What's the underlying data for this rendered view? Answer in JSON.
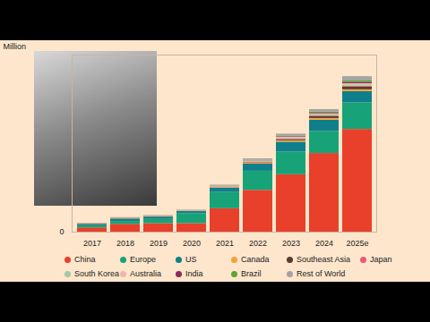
{
  "chart_data": {
    "type": "bar",
    "stacked": true,
    "y_label": "Million",
    "categories": [
      "2017",
      "2018",
      "2019",
      "2020",
      "2021",
      "2022",
      "2023",
      "2024",
      "2025e"
    ],
    "series": [
      {
        "name": "China",
        "color": "#e8402a",
        "values": [
          0.6,
          1.1,
          1.2,
          1.2,
          3.3,
          5.9,
          8.1,
          11.1,
          14.5
        ]
      },
      {
        "name": "Europe",
        "color": "#17a377",
        "values": [
          0.3,
          0.4,
          0.6,
          1.4,
          2.3,
          2.7,
          3.2,
          3.1,
          3.75
        ]
      },
      {
        "name": "US",
        "color": "#0f7f8c",
        "values": [
          0.2,
          0.36,
          0.33,
          0.3,
          0.63,
          1.0,
          1.4,
          1.6,
          1.6
        ]
      },
      {
        "name": "Canada",
        "color": "#f2a33a",
        "values": [
          0.02,
          0.04,
          0.06,
          0.05,
          0.09,
          0.12,
          0.2,
          0.25,
          0.25
        ]
      },
      {
        "name": "Southeast Asia",
        "color": "#5a3a2c",
        "values": [
          0.01,
          0.01,
          0.01,
          0.01,
          0.02,
          0.05,
          0.15,
          0.25,
          0.4
        ]
      },
      {
        "name": "Japan",
        "color": "#e85a7c",
        "values": [
          0.05,
          0.05,
          0.04,
          0.03,
          0.04,
          0.1,
          0.1,
          0.1,
          0.1
        ]
      },
      {
        "name": "South Korea",
        "color": "#a3c9a6",
        "values": [
          0.01,
          0.03,
          0.04,
          0.05,
          0.1,
          0.16,
          0.18,
          0.2,
          0.2
        ]
      },
      {
        "name": "Australia",
        "color": "#f0b7a6",
        "values": [
          0.01,
          0.01,
          0.01,
          0.01,
          0.02,
          0.04,
          0.1,
          0.1,
          0.15
        ]
      },
      {
        "name": "India",
        "color": "#8c2a5c",
        "values": [
          0.01,
          0.01,
          0.01,
          0.01,
          0.02,
          0.05,
          0.1,
          0.1,
          0.2
        ]
      },
      {
        "name": "Brazil",
        "color": "#5ea33c",
        "values": [
          0.01,
          0.01,
          0.01,
          0.01,
          0.01,
          0.02,
          0.05,
          0.15,
          0.2
        ]
      },
      {
        "name": "Rest of World",
        "color": "#a3a3a3",
        "values": [
          0.02,
          0.03,
          0.04,
          0.05,
          0.1,
          0.2,
          0.25,
          0.35,
          0.6
        ]
      }
    ],
    "ylim": [
      0,
      25
    ],
    "yticks": [
      0
    ],
    "grid": false,
    "legend": "bottom"
  }
}
